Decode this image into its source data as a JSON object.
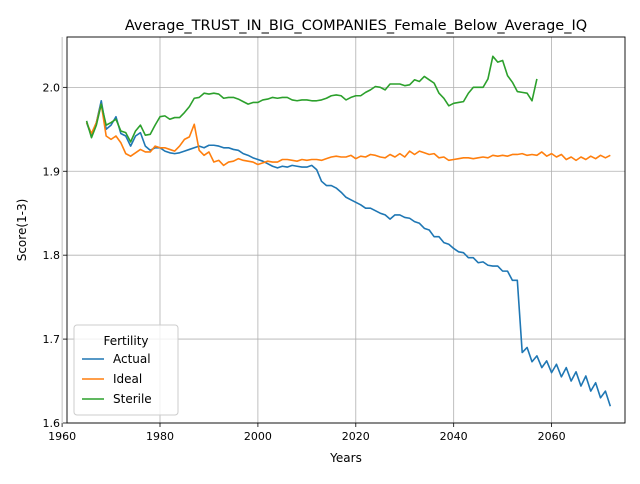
{
  "chart_data": {
    "type": "line",
    "title": "Average_TRUST_IN_BIG_COMPANIES_Female_Below_Average_IQ",
    "xlabel": "Years",
    "ylabel": "Score(1-3)",
    "xlim": [
      1961,
      2075
    ],
    "ylim": [
      1.6,
      2.06
    ],
    "xticks": [
      1960,
      1980,
      2000,
      2020,
      2040,
      2060
    ],
    "yticks": [
      1.6,
      1.7,
      1.8,
      1.9,
      2.0
    ],
    "grid": true,
    "legend": {
      "title": "Fertility",
      "placement": "lower-left"
    },
    "series": [
      {
        "name": "Actual",
        "color": "#1f77b4",
        "points": [
          [
            1965,
            1.958
          ],
          [
            1966,
            1.942
          ],
          [
            1967,
            1.958
          ],
          [
            1968,
            1.984
          ],
          [
            1969,
            1.95
          ],
          [
            1970,
            1.955
          ],
          [
            1971,
            1.965
          ],
          [
            1972,
            1.945
          ],
          [
            1973,
            1.942
          ],
          [
            1974,
            1.93
          ],
          [
            1975,
            1.942
          ],
          [
            1976,
            1.946
          ],
          [
            1977,
            1.93
          ],
          [
            1978,
            1.925
          ],
          [
            1979,
            1.928
          ],
          [
            1980,
            1.928
          ],
          [
            1981,
            1.924
          ],
          [
            1982,
            1.922
          ],
          [
            1983,
            1.921
          ],
          [
            1984,
            1.922
          ],
          [
            1985,
            1.924
          ],
          [
            1986,
            1.926
          ],
          [
            1987,
            1.928
          ],
          [
            1988,
            1.93
          ],
          [
            1989,
            1.928
          ],
          [
            1990,
            1.931
          ],
          [
            1991,
            1.931
          ],
          [
            1992,
            1.93
          ],
          [
            1993,
            1.928
          ],
          [
            1994,
            1.928
          ],
          [
            1995,
            1.926
          ],
          [
            1996,
            1.925
          ],
          [
            1997,
            1.921
          ],
          [
            1998,
            1.919
          ],
          [
            1999,
            1.916
          ],
          [
            2000,
            1.914
          ],
          [
            2001,
            1.912
          ],
          [
            2002,
            1.909
          ],
          [
            2003,
            1.906
          ],
          [
            2004,
            1.904
          ],
          [
            2005,
            1.906
          ],
          [
            2006,
            1.905
          ],
          [
            2007,
            1.907
          ],
          [
            2008,
            1.906
          ],
          [
            2009,
            1.905
          ],
          [
            2010,
            1.905
          ],
          [
            2011,
            1.907
          ],
          [
            2012,
            1.902
          ],
          [
            2013,
            1.888
          ],
          [
            2014,
            1.883
          ],
          [
            2015,
            1.883
          ],
          [
            2016,
            1.88
          ],
          [
            2017,
            1.875
          ],
          [
            2018,
            1.869
          ],
          [
            2019,
            1.866
          ],
          [
            2020,
            1.863
          ],
          [
            2021,
            1.86
          ],
          [
            2022,
            1.856
          ],
          [
            2023,
            1.856
          ],
          [
            2024,
            1.853
          ],
          [
            2025,
            1.85
          ],
          [
            2026,
            1.848
          ],
          [
            2027,
            1.843
          ],
          [
            2028,
            1.848
          ],
          [
            2029,
            1.848
          ],
          [
            2030,
            1.845
          ],
          [
            2031,
            1.844
          ],
          [
            2032,
            1.84
          ],
          [
            2033,
            1.838
          ],
          [
            2034,
            1.832
          ],
          [
            2035,
            1.83
          ],
          [
            2036,
            1.822
          ],
          [
            2037,
            1.822
          ],
          [
            2038,
            1.815
          ],
          [
            2039,
            1.813
          ],
          [
            2040,
            1.808
          ],
          [
            2041,
            1.804
          ],
          [
            2042,
            1.803
          ],
          [
            2043,
            1.797
          ],
          [
            2044,
            1.797
          ],
          [
            2045,
            1.791
          ],
          [
            2046,
            1.792
          ],
          [
            2047,
            1.788
          ],
          [
            2048,
            1.787
          ],
          [
            2049,
            1.787
          ],
          [
            2050,
            1.781
          ],
          [
            2051,
            1.781
          ],
          [
            2052,
            1.77
          ],
          [
            2053,
            1.77
          ],
          [
            2054,
            1.684
          ],
          [
            2055,
            1.69
          ],
          [
            2056,
            1.673
          ],
          [
            2057,
            1.68
          ],
          [
            2058,
            1.666
          ],
          [
            2059,
            1.674
          ],
          [
            2060,
            1.66
          ],
          [
            2061,
            1.67
          ],
          [
            2062,
            1.655
          ],
          [
            2063,
            1.666
          ],
          [
            2064,
            1.65
          ],
          [
            2065,
            1.661
          ],
          [
            2066,
            1.644
          ],
          [
            2067,
            1.656
          ],
          [
            2068,
            1.638
          ],
          [
            2069,
            1.648
          ],
          [
            2070,
            1.63
          ],
          [
            2071,
            1.638
          ],
          [
            2072,
            1.62
          ]
        ]
      },
      {
        "name": "Ideal",
        "color": "#ff7f0e",
        "points": [
          [
            1965,
            1.958
          ],
          [
            1966,
            1.945
          ],
          [
            1967,
            1.958
          ],
          [
            1968,
            1.98
          ],
          [
            1969,
            1.942
          ],
          [
            1970,
            1.938
          ],
          [
            1971,
            1.942
          ],
          [
            1972,
            1.934
          ],
          [
            1973,
            1.921
          ],
          [
            1974,
            1.918
          ],
          [
            1975,
            1.922
          ],
          [
            1976,
            1.926
          ],
          [
            1977,
            1.923
          ],
          [
            1978,
            1.923
          ],
          [
            1979,
            1.93
          ],
          [
            1980,
            1.928
          ],
          [
            1981,
            1.928
          ],
          [
            1982,
            1.926
          ],
          [
            1983,
            1.924
          ],
          [
            1984,
            1.93
          ],
          [
            1985,
            1.938
          ],
          [
            1986,
            1.941
          ],
          [
            1987,
            1.956
          ],
          [
            1988,
            1.925
          ],
          [
            1989,
            1.919
          ],
          [
            1990,
            1.923
          ],
          [
            1991,
            1.911
          ],
          [
            1992,
            1.913
          ],
          [
            1993,
            1.907
          ],
          [
            1994,
            1.911
          ],
          [
            1995,
            1.912
          ],
          [
            1996,
            1.915
          ],
          [
            1997,
            1.913
          ],
          [
            1998,
            1.912
          ],
          [
            1999,
            1.911
          ],
          [
            2000,
            1.908
          ],
          [
            2001,
            1.91
          ],
          [
            2002,
            1.912
          ],
          [
            2003,
            1.911
          ],
          [
            2004,
            1.911
          ],
          [
            2005,
            1.914
          ],
          [
            2006,
            1.914
          ],
          [
            2007,
            1.913
          ],
          [
            2008,
            1.912
          ],
          [
            2009,
            1.914
          ],
          [
            2010,
            1.913
          ],
          [
            2011,
            1.914
          ],
          [
            2012,
            1.914
          ],
          [
            2013,
            1.913
          ],
          [
            2014,
            1.915
          ],
          [
            2015,
            1.917
          ],
          [
            2016,
            1.918
          ],
          [
            2017,
            1.917
          ],
          [
            2018,
            1.917
          ],
          [
            2019,
            1.919
          ],
          [
            2020,
            1.915
          ],
          [
            2021,
            1.918
          ],
          [
            2022,
            1.917
          ],
          [
            2023,
            1.92
          ],
          [
            2024,
            1.919
          ],
          [
            2025,
            1.917
          ],
          [
            2026,
            1.916
          ],
          [
            2027,
            1.92
          ],
          [
            2028,
            1.917
          ],
          [
            2029,
            1.921
          ],
          [
            2030,
            1.917
          ],
          [
            2031,
            1.924
          ],
          [
            2032,
            1.92
          ],
          [
            2033,
            1.924
          ],
          [
            2034,
            1.922
          ],
          [
            2035,
            1.92
          ],
          [
            2036,
            1.921
          ],
          [
            2037,
            1.916
          ],
          [
            2038,
            1.917
          ],
          [
            2039,
            1.913
          ],
          [
            2040,
            1.914
          ],
          [
            2041,
            1.915
          ],
          [
            2042,
            1.916
          ],
          [
            2043,
            1.916
          ],
          [
            2044,
            1.915
          ],
          [
            2045,
            1.916
          ],
          [
            2046,
            1.917
          ],
          [
            2047,
            1.916
          ],
          [
            2048,
            1.919
          ],
          [
            2049,
            1.918
          ],
          [
            2050,
            1.919
          ],
          [
            2051,
            1.918
          ],
          [
            2052,
            1.92
          ],
          [
            2053,
            1.92
          ],
          [
            2054,
            1.921
          ],
          [
            2055,
            1.919
          ],
          [
            2056,
            1.92
          ],
          [
            2057,
            1.919
          ],
          [
            2058,
            1.923
          ],
          [
            2059,
            1.918
          ],
          [
            2060,
            1.921
          ],
          [
            2061,
            1.917
          ],
          [
            2062,
            1.92
          ],
          [
            2063,
            1.914
          ],
          [
            2064,
            1.917
          ],
          [
            2065,
            1.913
          ],
          [
            2066,
            1.917
          ],
          [
            2067,
            1.914
          ],
          [
            2068,
            1.918
          ],
          [
            2069,
            1.915
          ],
          [
            2070,
            1.919
          ],
          [
            2071,
            1.916
          ],
          [
            2072,
            1.919
          ]
        ]
      },
      {
        "name": "Sterile",
        "color": "#2ca02c",
        "points": [
          [
            1965,
            1.96
          ],
          [
            1966,
            1.94
          ],
          [
            1967,
            1.955
          ],
          [
            1968,
            1.98
          ],
          [
            1969,
            1.955
          ],
          [
            1970,
            1.958
          ],
          [
            1971,
            1.962
          ],
          [
            1972,
            1.948
          ],
          [
            1973,
            1.946
          ],
          [
            1974,
            1.935
          ],
          [
            1975,
            1.948
          ],
          [
            1976,
            1.955
          ],
          [
            1977,
            1.943
          ],
          [
            1978,
            1.944
          ],
          [
            1979,
            1.955
          ],
          [
            1980,
            1.965
          ],
          [
            1981,
            1.966
          ],
          [
            1982,
            1.962
          ],
          [
            1983,
            1.964
          ],
          [
            1984,
            1.964
          ],
          [
            1985,
            1.97
          ],
          [
            1986,
            1.977
          ],
          [
            1987,
            1.987
          ],
          [
            1988,
            1.988
          ],
          [
            1989,
            1.993
          ],
          [
            1990,
            1.992
          ],
          [
            1991,
            1.993
          ],
          [
            1992,
            1.992
          ],
          [
            1993,
            1.987
          ],
          [
            1994,
            1.988
          ],
          [
            1995,
            1.988
          ],
          [
            1996,
            1.986
          ],
          [
            1997,
            1.983
          ],
          [
            1998,
            1.98
          ],
          [
            1999,
            1.982
          ],
          [
            2000,
            1.982
          ],
          [
            2001,
            1.985
          ],
          [
            2002,
            1.986
          ],
          [
            2003,
            1.988
          ],
          [
            2004,
            1.987
          ],
          [
            2005,
            1.988
          ],
          [
            2006,
            1.988
          ],
          [
            2007,
            1.985
          ],
          [
            2008,
            1.984
          ],
          [
            2009,
            1.985
          ],
          [
            2010,
            1.985
          ],
          [
            2011,
            1.984
          ],
          [
            2012,
            1.984
          ],
          [
            2013,
            1.985
          ],
          [
            2014,
            1.987
          ],
          [
            2015,
            1.99
          ],
          [
            2016,
            1.991
          ],
          [
            2017,
            1.99
          ],
          [
            2018,
            1.985
          ],
          [
            2019,
            1.988
          ],
          [
            2020,
            1.99
          ],
          [
            2021,
            1.99
          ],
          [
            2022,
            1.994
          ],
          [
            2023,
            1.997
          ],
          [
            2024,
            2.001
          ],
          [
            2025,
            2.0
          ],
          [
            2026,
            1.997
          ],
          [
            2027,
            2.004
          ],
          [
            2028,
            2.004
          ],
          [
            2029,
            2.004
          ],
          [
            2030,
            2.002
          ],
          [
            2031,
            2.003
          ],
          [
            2032,
            2.009
          ],
          [
            2033,
            2.007
          ],
          [
            2034,
            2.013
          ],
          [
            2035,
            2.009
          ],
          [
            2036,
            2.005
          ],
          [
            2037,
            1.993
          ],
          [
            2038,
            1.987
          ],
          [
            2039,
            1.978
          ],
          [
            2040,
            1.981
          ],
          [
            2041,
            1.982
          ],
          [
            2042,
            1.983
          ],
          [
            2043,
            1.993
          ],
          [
            2044,
            2.0
          ],
          [
            2045,
            2.0
          ],
          [
            2046,
            2.0
          ],
          [
            2047,
            2.01
          ],
          [
            2048,
            2.037
          ],
          [
            2049,
            2.03
          ],
          [
            2050,
            2.032
          ],
          [
            2051,
            2.014
          ],
          [
            2052,
            2.006
          ],
          [
            2053,
            1.995
          ],
          [
            2054,
            1.994
          ],
          [
            2055,
            1.993
          ],
          [
            2056,
            1.984
          ],
          [
            2057,
            2.01
          ]
        ]
      }
    ]
  }
}
